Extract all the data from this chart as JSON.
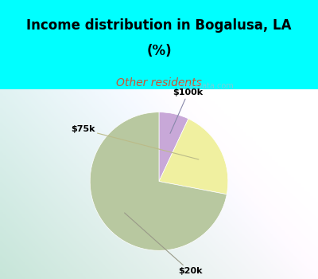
{
  "title_line1": "Income distribution in Bogalusa, LA",
  "title_line2": "(%)",
  "subtitle": "Other residents",
  "title_color": "#000000",
  "subtitle_color": "#cc5533",
  "bg_cyan": "#00ffff",
  "slices": [
    {
      "label": "$100k",
      "value": 7.0,
      "color": "#c8a8d8"
    },
    {
      "label": "$75k",
      "value": 21.0,
      "color": "#f0f0a0"
    },
    {
      "label": "$20k",
      "value": 72.0,
      "color": "#b8c8a0"
    }
  ],
  "startangle": 90,
  "counterclock": false,
  "watermark": "City-Data.com",
  "chart_bg_left": "#d0e8d0",
  "chart_bg_right": "#f0f8f8"
}
